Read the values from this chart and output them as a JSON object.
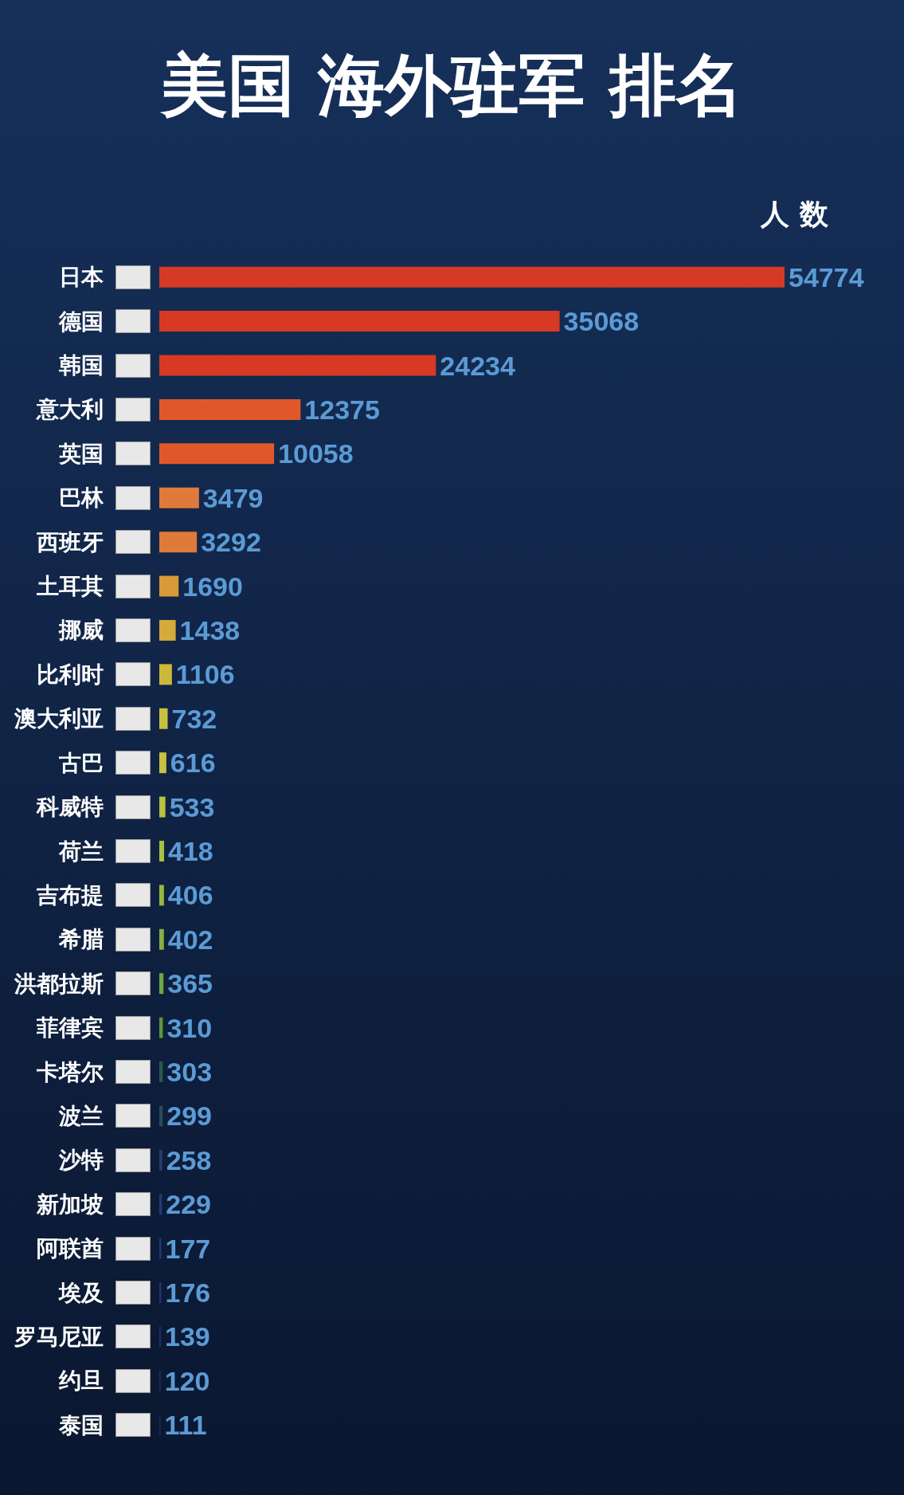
{
  "chart_data": {
    "type": "bar",
    "orientation": "horizontal",
    "title": "美国 海外驻军 排名",
    "xlabel": "人 数",
    "tick_labels": "y",
    "data_labels": true,
    "categories": [
      "日本",
      "德国",
      "韩国",
      "意大利",
      "英国",
      "巴林",
      "西班牙",
      "土耳其",
      "挪威",
      "比利时",
      "澳大利亚",
      "古巴",
      "科威特",
      "荷兰",
      "吉布提",
      "希腊",
      "洪都拉斯",
      "菲律宾",
      "卡塔尔",
      "波兰",
      "沙特",
      "新加坡",
      "阿联酋",
      "埃及",
      "罗马尼亚",
      "约旦",
      "泰国"
    ],
    "values": [
      54774,
      35068,
      24234,
      12375,
      10058,
      3479,
      3292,
      1690,
      1438,
      1106,
      732,
      616,
      533,
      418,
      406,
      402,
      365,
      310,
      303,
      299,
      258,
      229,
      177,
      176,
      139,
      120,
      111
    ],
    "colors": [
      "#d63a24",
      "#d63a24",
      "#d63a24",
      "#e0582a",
      "#e0582a",
      "#e07a3a",
      "#e07a3a",
      "#d99a3a",
      "#d4aa3a",
      "#cdb83a",
      "#c8c040",
      "#c8c040",
      "#b8c040",
      "#a8c040",
      "#98b840",
      "#88b040",
      "#70a840",
      "#589838",
      "#2a5a48",
      "#2a4a58",
      "#243e68",
      "#223a78",
      "#203878",
      "#1e3470",
      "#1c3068",
      "#1c2c60",
      "#1a2a58"
    ]
  }
}
